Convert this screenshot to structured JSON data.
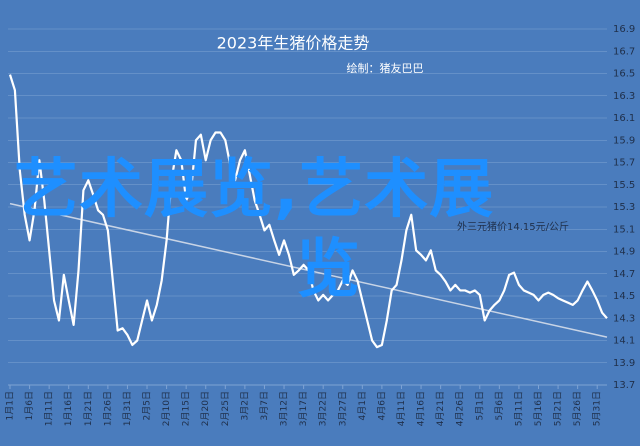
{
  "chart_data": {
    "type": "line",
    "title": "2023年生猪价格走势",
    "subtitle": "绘制：猪友巴巴",
    "annotation": "外三元猪价14.15元/公斤",
    "overlay": [
      "艺术展览,艺术展",
      "览"
    ],
    "ylim": [
      13.7,
      16.9
    ],
    "yticks": [
      13.7,
      13.9,
      14.1,
      14.3,
      14.5,
      14.7,
      14.9,
      15.1,
      15.3,
      15.5,
      15.7,
      15.9,
      16.1,
      16.3,
      16.5,
      16.7,
      16.9
    ],
    "grid": true,
    "categories": [
      "1月1日",
      null,
      null,
      null,
      "1月6日",
      null,
      null,
      null,
      "1月11日",
      null,
      null,
      null,
      "1月16日",
      null,
      null,
      null,
      "1月21日",
      null,
      null,
      null,
      "1月26日",
      null,
      null,
      null,
      "1月31日",
      null,
      null,
      null,
      "2月5日",
      null,
      null,
      null,
      "2月10日",
      null,
      null,
      null,
      "2月15日",
      null,
      null,
      null,
      "2月20日",
      null,
      null,
      null,
      "2月25日",
      null,
      null,
      null,
      "3月2日",
      null,
      null,
      null,
      "3月7日",
      null,
      null,
      null,
      "3月12日",
      null,
      null,
      null,
      "3月17日",
      null,
      null,
      null,
      "3月22日",
      null,
      null,
      null,
      "3月27日",
      null,
      null,
      null,
      "4月1日",
      null,
      null,
      null,
      "4月6日",
      null,
      null,
      null,
      "4月11日",
      null,
      null,
      null,
      "4月16日",
      null,
      null,
      null,
      "4月21日",
      null,
      null,
      null,
      "4月26日",
      null,
      null,
      null,
      "5月1日",
      null,
      null,
      null,
      "5月6日",
      null,
      null,
      null,
      "5月11日",
      null,
      null,
      null,
      "5月16日",
      null,
      null,
      null,
      "5月21日",
      null,
      null,
      null,
      "5月26日",
      null,
      null,
      null,
      "5月31日",
      null,
      null
    ],
    "series": [
      {
        "color": "#ffffff",
        "values": [
          16.49,
          16.35,
          15.63,
          15.23,
          15.0,
          15.27,
          15.72,
          15.36,
          14.91,
          14.46,
          14.28,
          14.69,
          14.46,
          14.24,
          14.73,
          15.45,
          15.54,
          15.41,
          15.27,
          15.23,
          15.09,
          14.64,
          14.19,
          14.21,
          14.15,
          14.06,
          14.1,
          14.28,
          14.46,
          14.28,
          14.42,
          14.64,
          15.0,
          15.54,
          15.81,
          15.72,
          15.36,
          15.45,
          15.9,
          15.95,
          15.72,
          15.9,
          15.97,
          15.97,
          15.9,
          15.68,
          15.54,
          15.72,
          15.81,
          15.59,
          15.36,
          15.23,
          15.09,
          15.14,
          15.0,
          14.87,
          15.0,
          14.87,
          14.69,
          14.73,
          14.78,
          14.73,
          14.55,
          14.46,
          14.51,
          14.46,
          14.51,
          14.55,
          14.64,
          14.6,
          14.73,
          14.64,
          14.46,
          14.28,
          14.1,
          14.04,
          14.06,
          14.28,
          14.55,
          14.6,
          14.82,
          15.09,
          15.23,
          14.91,
          14.87,
          14.82,
          14.91,
          14.73,
          14.69,
          14.63,
          14.55,
          14.6,
          14.55,
          14.55,
          14.53,
          14.55,
          14.51,
          14.28,
          14.37,
          14.42,
          14.46,
          14.55,
          14.69,
          14.71,
          14.6,
          14.55,
          14.53,
          14.51,
          14.46,
          14.51,
          14.53,
          14.51,
          14.48,
          14.46,
          14.44,
          14.42,
          14.46,
          14.55,
          14.63,
          14.55,
          14.46,
          14.35,
          14.3
        ]
      }
    ],
    "trend": {
      "color": "#c8d4e6",
      "values": [
        15.33,
        14.13
      ]
    }
  }
}
